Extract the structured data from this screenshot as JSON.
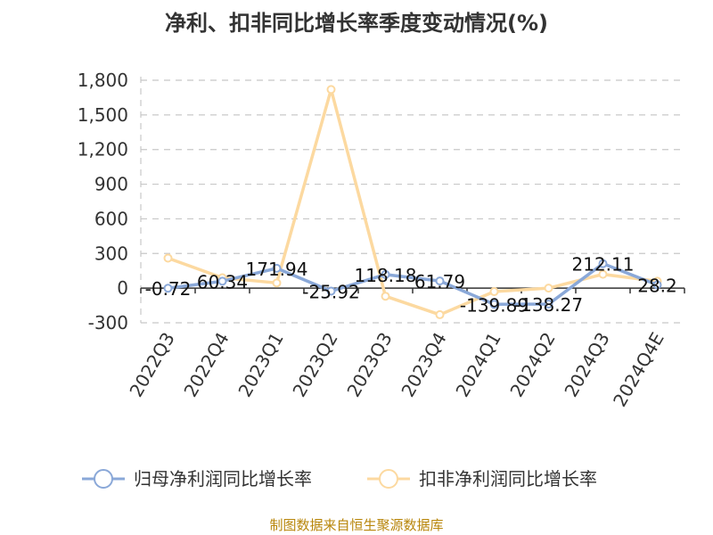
{
  "chart_data": {
    "type": "line",
    "title": "净利、扣非同比增长率季度变动情况(%)",
    "categories": [
      "2022Q3",
      "2022Q4",
      "2023Q1",
      "2023Q2",
      "2023Q3",
      "2023Q4",
      "2024Q1",
      "2024Q2",
      "2024Q3",
      "2024Q4E"
    ],
    "yticks": [
      "-300",
      "0",
      "300",
      "600",
      "900",
      "1,200",
      "1,500",
      "1,800"
    ],
    "ylim": [
      -300,
      1800
    ],
    "grid": true,
    "legend_position": "bottom",
    "series": [
      {
        "name": "归母净利润同比增长率",
        "color": "#8aa8d8",
        "values": [
          -0.72,
          60.34,
          171.94,
          -25.92,
          118.18,
          61.79,
          -139.89,
          -138.27,
          212.11,
          28.2
        ],
        "labels": [
          "-0.72",
          "60.34",
          "171.94",
          "-25.92",
          "118.18",
          "61.79",
          "-139.89",
          "-138.27",
          "212.11",
          "28.2"
        ]
      },
      {
        "name": "扣非净利润同比增长率",
        "color": "#fcd9a0",
        "values": [
          260,
          90,
          45,
          1720,
          -70,
          -230,
          -30,
          0,
          120,
          60
        ]
      }
    ],
    "source": "制图数据来自恒生聚源数据库"
  }
}
